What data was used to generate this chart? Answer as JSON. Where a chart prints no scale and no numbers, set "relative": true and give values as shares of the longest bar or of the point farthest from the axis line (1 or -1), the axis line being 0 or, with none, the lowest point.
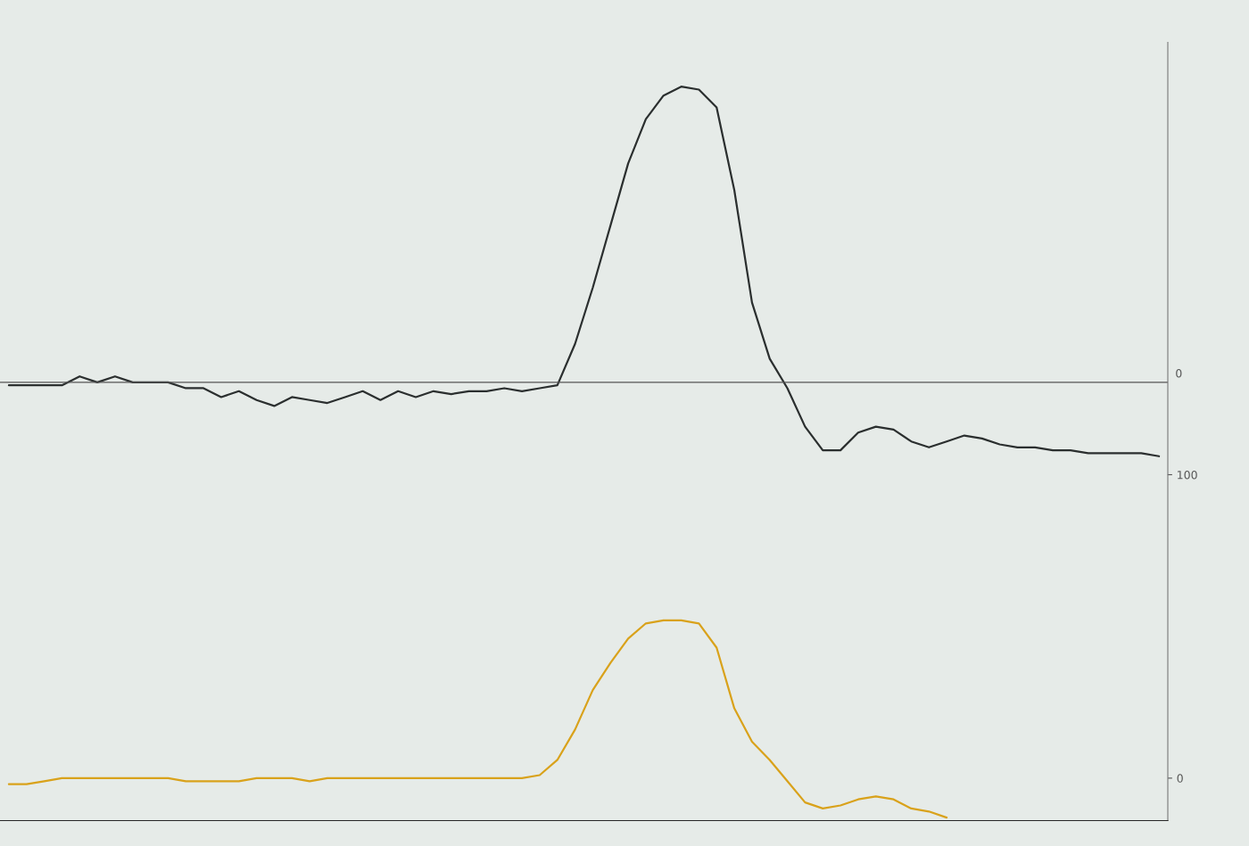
{
  "chart_data": [
    {
      "type": "line",
      "relative": true,
      "categories": [
        null,
        null,
        null,
        null,
        null,
        null,
        null,
        null,
        null,
        null,
        null,
        null,
        null,
        null,
        null,
        null,
        null,
        null,
        null,
        null,
        null,
        null,
        null,
        null,
        null,
        null,
        null,
        null,
        null,
        null,
        null,
        null,
        null,
        null,
        null,
        null,
        null,
        null,
        null,
        null,
        null,
        null,
        null,
        null,
        null,
        null,
        null,
        null,
        null,
        null,
        null,
        null,
        null,
        null,
        null,
        null,
        null,
        null,
        null,
        null,
        null,
        null,
        null,
        null,
        null,
        null
      ],
      "series": [
        {
          "color": "#2b2f2f",
          "values": [
            -0.01,
            -0.01,
            -0.01,
            -0.01,
            0.02,
            0,
            0.02,
            0,
            0,
            0,
            -0.02,
            -0.02,
            -0.05,
            -0.03,
            -0.06,
            -0.08,
            -0.05,
            -0.06,
            -0.07,
            -0.05,
            -0.03,
            -0.06,
            -0.03,
            -0.05,
            -0.03,
            -0.04,
            -0.03,
            -0.03,
            -0.02,
            -0.03,
            -0.02,
            -0.01,
            0.13,
            0.32,
            0.53,
            0.74,
            0.89,
            0.97,
            1,
            0.99,
            0.93,
            0.65,
            0.27,
            0.08,
            -0.02,
            -0.15,
            -0.23,
            -0.23,
            -0.17,
            -0.15,
            -0.16,
            -0.2,
            -0.22,
            -0.2,
            -0.18,
            -0.19,
            -0.21,
            -0.22,
            -0.22,
            -0.23,
            -0.23,
            -0.24,
            -0.24,
            -0.24,
            -0.24,
            -0.25
          ]
        }
      ],
      "ref_lines": [
        {
          "axis": "y",
          "value": 0,
          "label": "0"
        }
      ]
    },
    {
      "type": "line",
      "categories": [
        null,
        null,
        null,
        null,
        null,
        null,
        null,
        null,
        null,
        null,
        null,
        null,
        null,
        null,
        null,
        null,
        null,
        null,
        null,
        null,
        null,
        null,
        null,
        null,
        null,
        null,
        null,
        null,
        null,
        null,
        null,
        null,
        null,
        null,
        null,
        null,
        null,
        null,
        null,
        null,
        null,
        null,
        null,
        null,
        null,
        null,
        null,
        null,
        null,
        null,
        null,
        null,
        null,
        null,
        null,
        null,
        null,
        null,
        null,
        null,
        null,
        null,
        null,
        null,
        null,
        null
      ],
      "series": [
        {
          "color": "#d9a21b",
          "values": [
            -2,
            -2,
            -1,
            0,
            0,
            0,
            0,
            0,
            0,
            0,
            -1,
            -1,
            -1,
            -1,
            0,
            0,
            0,
            -1,
            0,
            0,
            0,
            0,
            0,
            0,
            0,
            0,
            0,
            0,
            0,
            0,
            1,
            6,
            16,
            29,
            38,
            46,
            51,
            52,
            52,
            51,
            43,
            23,
            12,
            6,
            -1,
            -8,
            -10,
            -9,
            -7,
            -6,
            -7,
            -10,
            -11,
            -13,
            null,
            null,
            null,
            null,
            null,
            null,
            null,
            null,
            null,
            null,
            null,
            null
          ]
        }
      ],
      "ylim": [
        -14,
        100
      ],
      "yticks": [
        0,
        100
      ],
      "tick_labels": "y"
    }
  ]
}
